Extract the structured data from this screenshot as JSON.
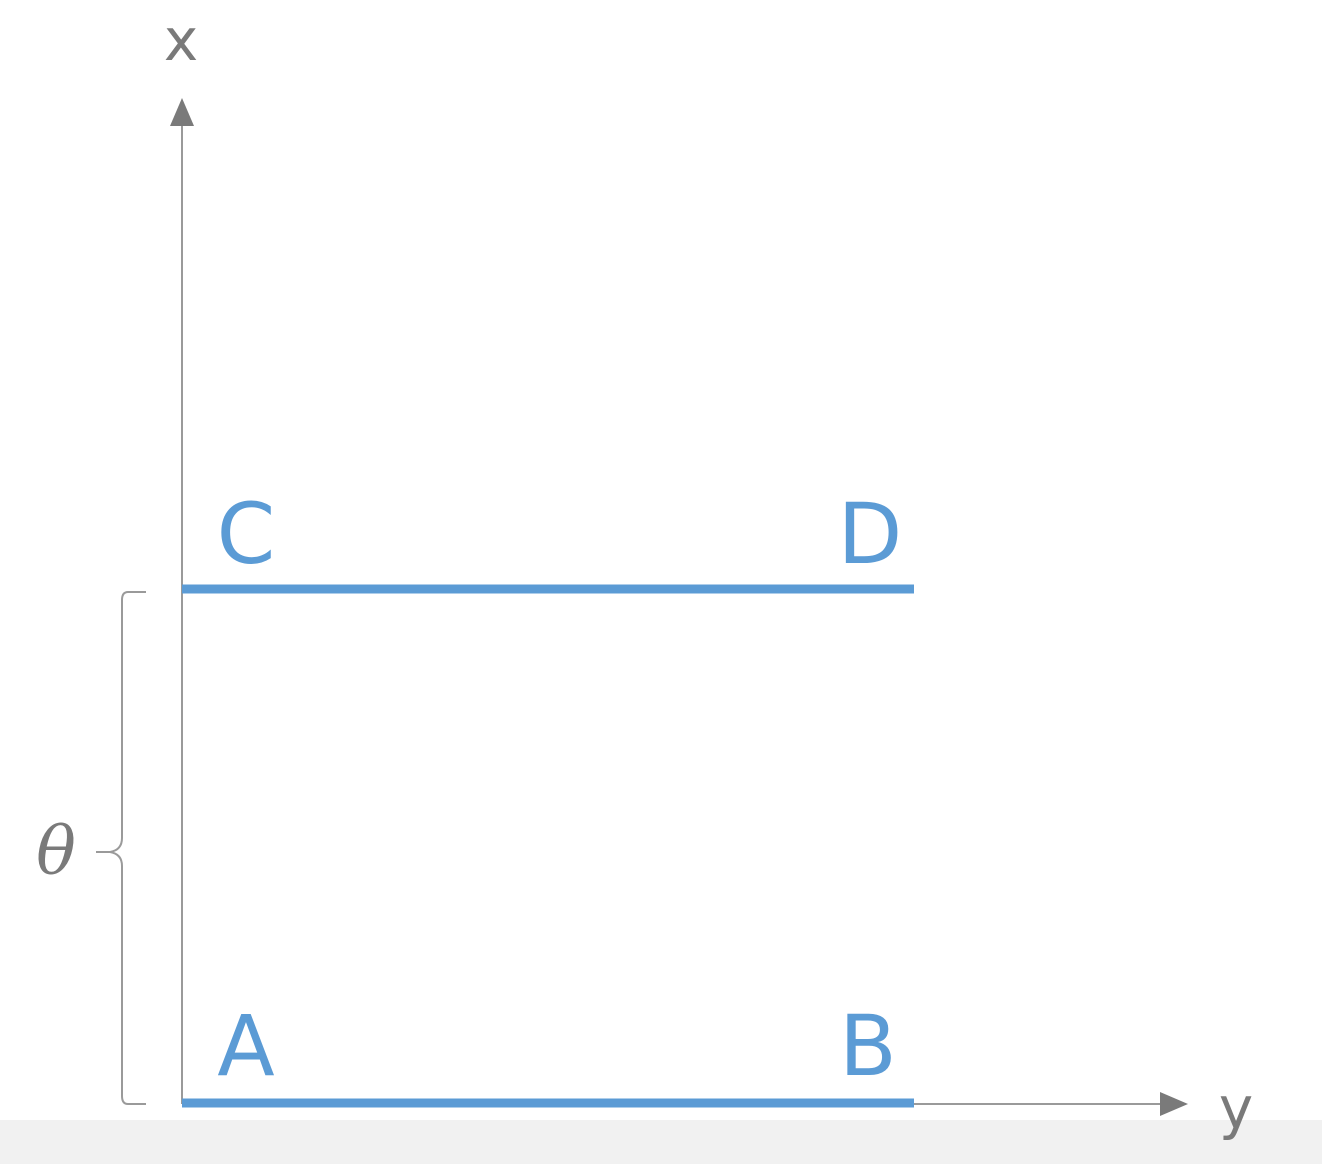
{
  "axes": {
    "vertical_label": "x",
    "horizontal_label": "y"
  },
  "points": {
    "a": "A",
    "b": "B",
    "c": "C",
    "d": "D"
  },
  "brace_label": "θ",
  "colors": {
    "segment": "#5b9bd5",
    "axis": "#9a9a9a",
    "label": "#7a7a7a"
  }
}
